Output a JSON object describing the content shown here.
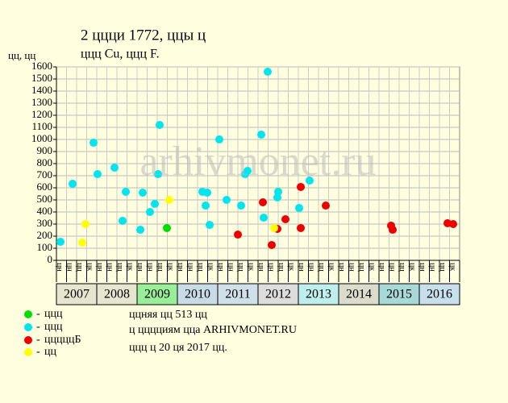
{
  "chart_data": {
    "type": "scatter",
    "title": "2 ццци 1772, ццы ц",
    "subtitle": "ццц Cu, ццц F.",
    "y_label": "цц, цц",
    "watermark": "arhivmonet.ru",
    "xlim": [
      2007,
      2017
    ],
    "ylim": [
      0,
      1600
    ],
    "yticks": [
      0,
      100,
      200,
      300,
      400,
      500,
      600,
      700,
      800,
      900,
      1000,
      1100,
      1200,
      1300,
      1400,
      1500,
      1600
    ],
    "grid": true,
    "categories": [
      "2007",
      "2008",
      "2009",
      "2010",
      "2011",
      "2012",
      "2013",
      "2014",
      "2015",
      "2016"
    ],
    "category_colors": [
      "#e6e6d0",
      "#e6e6d0",
      "#99ee99",
      "#c8dce8",
      "#d0e0ea",
      "#dddddd",
      "#bfeeee",
      "#dcdccc",
      "#a8d8d8",
      "#c8e0ec"
    ],
    "sub_labels": [
      "цн",
      "цн",
      "цц",
      "цк",
      "цн",
      "цн",
      "цц",
      "цк",
      "цн",
      "цн",
      "цц",
      "цк",
      "цн",
      "цн",
      "цц",
      "цк",
      "цн",
      "цн",
      "цц",
      "цк",
      "цн",
      "цн",
      "цц",
      "цк",
      "цн",
      "цн",
      "цц",
      "цк",
      "цн",
      "цн",
      "цц",
      "цк",
      "цн",
      "цн",
      "цц",
      "цк",
      "цн",
      "цн",
      "цц",
      "цк"
    ],
    "series": [
      {
        "name": "ццц",
        "color": "#00dd00",
        "x": [
          2009.74
        ],
        "values": [
          267
        ]
      },
      {
        "name": "ццц",
        "color": "#00e5ee",
        "x": [
          2007.1,
          2007.4,
          2007.92,
          2008.02,
          2008.44,
          2008.64,
          2008.72,
          2009.08,
          2009.14,
          2009.32,
          2009.44,
          2009.52,
          2009.56,
          2010.62,
          2010.7,
          2010.74,
          2010.8,
          2011.04,
          2011.22,
          2011.58,
          2011.68,
          2011.74,
          2012.08,
          2012.14,
          2012.24,
          2012.48,
          2012.5,
          2013.02,
          2013.28
        ],
        "values": [
          153,
          633,
          973,
          713,
          767,
          327,
          567,
          253,
          560,
          400,
          467,
          713,
          1120,
          567,
          453,
          560,
          293,
          1000,
          500,
          453,
          713,
          740,
          1040,
          353,
          1560,
          520,
          567,
          433,
          660
        ]
      },
      {
        "name": "цццццБ",
        "color": "#ee0000",
        "x": [
          2011.5,
          2012.12,
          2012.34,
          2012.48,
          2012.68,
          2013.06,
          2013.06,
          2013.68,
          2015.3,
          2015.34,
          2016.7,
          2016.84
        ],
        "values": [
          213,
          480,
          127,
          260,
          340,
          607,
          267,
          453,
          287,
          253,
          307,
          300
        ]
      },
      {
        "name": "цц",
        "color": "#ffff00",
        "x": [
          2007.72,
          2007.64,
          2009.8,
          2012.4
        ],
        "values": [
          300,
          147,
          500,
          267
        ]
      }
    ],
    "notes": [
      "ццняя цц 513 цц",
      "ц цццциям цца ARHIVMONET.RU",
      "ццц ц 20 ця 2017 цц."
    ]
  }
}
